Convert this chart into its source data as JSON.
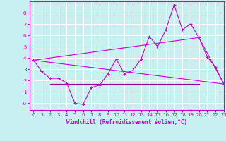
{
  "xlabel": "Windchill (Refroidissement éolien,°C)",
  "bg_color": "#c8f0f0",
  "line_color": "#cc00cc",
  "grid_color": "#ffffff",
  "ylim": [
    -0.6,
    9.0
  ],
  "xlim": [
    -0.5,
    23
  ],
  "yticks": [
    0,
    1,
    2,
    3,
    4,
    5,
    6,
    7,
    8
  ],
  "xticks": [
    0,
    1,
    2,
    3,
    4,
    5,
    6,
    7,
    8,
    9,
    10,
    11,
    12,
    13,
    14,
    15,
    16,
    17,
    18,
    19,
    20,
    21,
    22,
    23
  ],
  "line1_x": [
    0,
    1,
    2,
    3,
    4,
    5,
    6,
    7,
    8,
    9,
    10,
    11,
    12,
    13,
    14,
    15,
    16,
    17,
    18,
    19,
    20,
    21,
    22,
    23
  ],
  "line1_y": [
    3.8,
    2.8,
    2.2,
    2.2,
    1.8,
    0.0,
    -0.1,
    1.4,
    1.6,
    2.6,
    3.9,
    2.6,
    2.9,
    3.9,
    5.9,
    5.0,
    6.5,
    8.7,
    6.5,
    7.0,
    5.8,
    4.1,
    3.2,
    1.7
  ],
  "line2_x": [
    0,
    20,
    23
  ],
  "line2_y": [
    3.8,
    5.8,
    1.7
  ],
  "line3_x": [
    2,
    20
  ],
  "line3_y": [
    1.7,
    1.7
  ],
  "line4_x": [
    0,
    23
  ],
  "line4_y": [
    3.8,
    1.7
  ]
}
